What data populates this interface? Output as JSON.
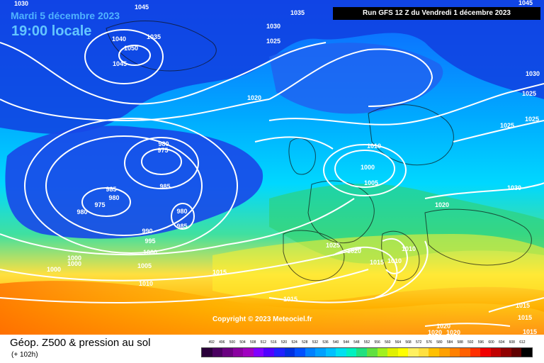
{
  "header": {
    "date": "Mardi 5 décembre 2023",
    "time": "19:00 locale",
    "run": "Run GFS 12 Z du Vendredi 1 décembre 2023"
  },
  "copyright": "Copyright © 2023 Meteociel.fr",
  "footer": {
    "title": "Géop. Z500 & pression au sol",
    "subtitle": "(+ 102h)"
  },
  "pressure_labels": [
    "1030",
    "1045",
    "1040",
    "1035",
    "1050",
    "1045",
    "1035",
    "1030",
    "1025",
    "1020",
    "1045",
    "1030",
    "1025",
    "1025",
    "1025",
    "980",
    "975",
    "985",
    "985",
    "980",
    "975",
    "980",
    "980",
    "985",
    "990",
    "995",
    "1000",
    "1000",
    "1000",
    "1000",
    "1005",
    "1010",
    "1015",
    "1010",
    "1000",
    "1005",
    "1030",
    "1020",
    "1025",
    "1020",
    "1010",
    "1015",
    "1010",
    "1015",
    "1020",
    "1020",
    "1020",
    "1015",
    "1015",
    "1015"
  ],
  "colorbar": {
    "labels": [
      "492",
      "496",
      "500",
      "504",
      "508",
      "512",
      "516",
      "520",
      "524",
      "528",
      "532",
      "536",
      "540",
      "544",
      "548",
      "552",
      "556",
      "560",
      "564",
      "568",
      "572",
      "576",
      "580",
      "584",
      "588",
      "592",
      "596",
      "600",
      "604",
      "608",
      "612"
    ],
    "colors": [
      "#2a003a",
      "#4a0060",
      "#6a0080",
      "#8a00a0",
      "#a000c0",
      "#8000ff",
      "#5000ff",
      "#2020ff",
      "#0030e0",
      "#0050ff",
      "#0080ff",
      "#00a0ff",
      "#00c0ff",
      "#00e0f0",
      "#00f0c0",
      "#20e080",
      "#60e040",
      "#a0f020",
      "#e0f000",
      "#ffff00",
      "#fff060",
      "#ffe040",
      "#ffc000",
      "#ffa000",
      "#ff8000",
      "#ff6000",
      "#ff3000",
      "#f00000",
      "#c00000",
      "#900000",
      "#600000",
      "#000000"
    ]
  }
}
